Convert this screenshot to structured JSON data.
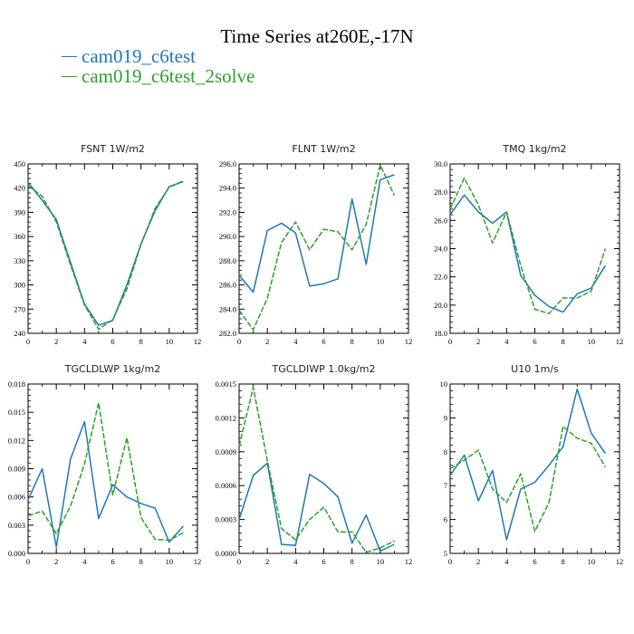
{
  "title": "Time Series at260E,-17N",
  "colors": {
    "series1": "#1f77b4",
    "series2": "#2ca02c"
  },
  "chart_data": [
    {
      "type": "line",
      "title": "FSNT   1W/m2",
      "ylim": [
        240,
        450
      ],
      "yticks": [
        "240",
        "270",
        "300",
        "330",
        "360",
        "390",
        "420",
        "450"
      ],
      "xlim": [
        0,
        12
      ],
      "xticks": [
        "0",
        "2",
        "4",
        "6",
        "8",
        "10",
        "12"
      ],
      "x": [
        0,
        1,
        2,
        3,
        4,
        5,
        6,
        7,
        8,
        9,
        10,
        11
      ],
      "series": [
        {
          "name": "cam019_c6test",
          "values": [
            427,
            405,
            381,
            328,
            276,
            250,
            256,
            300,
            351,
            392,
            422,
            428
          ]
        },
        {
          "name": "cam019_c6test_2solve",
          "values": [
            423,
            410,
            378,
            325,
            275,
            245,
            257,
            295,
            350,
            395,
            421,
            429
          ]
        }
      ]
    },
    {
      "type": "line",
      "title": "FLNT   1W/m2",
      "ylim": [
        282,
        296
      ],
      "yticks": [
        "282.0",
        "284.0",
        "286.0",
        "288.0",
        "290.0",
        "292.0",
        "294.0",
        "296.0"
      ],
      "xlim": [
        0,
        12
      ],
      "xticks": [
        "0",
        "2",
        "4",
        "6",
        "8",
        "10",
        "12"
      ],
      "x": [
        0,
        1,
        2,
        3,
        4,
        5,
        6,
        7,
        8,
        9,
        10,
        11
      ],
      "series": [
        {
          "name": "cam019_c6test",
          "values": [
            286.8,
            285.4,
            290.5,
            291.1,
            290.3,
            285.9,
            286.1,
            286.5,
            293.1,
            287.7,
            294.7,
            295.1
          ]
        },
        {
          "name": "cam019_c6test_2solve",
          "values": [
            283.9,
            282.3,
            284.9,
            289.5,
            291.2,
            288.9,
            290.6,
            290.4,
            288.9,
            291.0,
            295.9,
            293.4
          ]
        }
      ]
    },
    {
      "type": "line",
      "title": "TMQ   1kg/m2",
      "ylim": [
        18,
        30
      ],
      "yticks": [
        "18.0",
        "20.0",
        "22.0",
        "24.0",
        "26.0",
        "28.0",
        "30.0"
      ],
      "xlim": [
        0,
        12
      ],
      "xticks": [
        "0",
        "2",
        "4",
        "6",
        "8",
        "10",
        "12"
      ],
      "x": [
        0,
        1,
        2,
        3,
        4,
        5,
        6,
        7,
        8,
        9,
        10,
        11
      ],
      "series": [
        {
          "name": "cam019_c6test",
          "values": [
            26.4,
            27.8,
            26.6,
            25.8,
            26.6,
            22.1,
            20.7,
            19.9,
            19.5,
            20.8,
            21.2,
            22.8
          ]
        },
        {
          "name": "cam019_c6test_2solve",
          "values": [
            26.8,
            29.0,
            27.1,
            24.4,
            26.6,
            22.8,
            19.7,
            19.4,
            20.5,
            20.5,
            21.0,
            24.0
          ]
        }
      ]
    },
    {
      "type": "line",
      "title": "TGCLDLWP   1kg/m2",
      "ylim": [
        0,
        0.018
      ],
      "yticks": [
        "0.000",
        "0.003",
        "0.006",
        "0.009",
        "0.012",
        "0.015",
        "0.018"
      ],
      "xlim": [
        0,
        12
      ],
      "xticks": [
        "0",
        "2",
        "4",
        "6",
        "8",
        "10",
        "12"
      ],
      "x": [
        0,
        1,
        2,
        3,
        4,
        5,
        6,
        7,
        8,
        9,
        10,
        11
      ],
      "series": [
        {
          "name": "cam019_c6test",
          "values": [
            0.0057,
            0.009,
            0.0007,
            0.01,
            0.014,
            0.0037,
            0.0073,
            0.006,
            0.0053,
            0.0048,
            0.0012,
            0.0029
          ]
        },
        {
          "name": "cam019_c6test_2solve",
          "values": [
            0.004,
            0.0045,
            0.0021,
            0.005,
            0.0095,
            0.016,
            0.0062,
            0.0123,
            0.0038,
            0.0015,
            0.0014,
            0.0022
          ]
        }
      ]
    },
    {
      "type": "line",
      "title": "TGCLDIWP   1.0kg/m2",
      "ylim": [
        0,
        0.0015
      ],
      "yticks": [
        "0.0000",
        "0.0003",
        "0.0006",
        "0.0009",
        "0.0012",
        "0.0015"
      ],
      "xlim": [
        0,
        12
      ],
      "xticks": [
        "0",
        "2",
        "4",
        "6",
        "8",
        "10",
        "12"
      ],
      "x": [
        0,
        1,
        2,
        3,
        4,
        5,
        6,
        7,
        8,
        9,
        10,
        11
      ],
      "series": [
        {
          "name": "cam019_c6test",
          "values": [
            0.0003,
            0.00069,
            0.0008,
            8e-05,
            7e-05,
            0.0007,
            0.00062,
            0.0005,
            9e-05,
            0.00034,
            2e-05,
            8e-05
          ]
        },
        {
          "name": "cam019_c6test_2solve",
          "values": [
            0.00095,
            0.00147,
            0.00082,
            0.00022,
            0.00012,
            0.0003,
            0.00041,
            0.00019,
            0.00019,
            1e-05,
            5e-05,
            0.00011
          ]
        }
      ]
    },
    {
      "type": "line",
      "title": "U10   1m/s",
      "ylim": [
        5,
        10
      ],
      "yticks": [
        "5",
        "6",
        "7",
        "8",
        "9",
        "10"
      ],
      "xlim": [
        0,
        12
      ],
      "xticks": [
        "0",
        "2",
        "4",
        "6",
        "8",
        "10",
        "12"
      ],
      "x": [
        0,
        1,
        2,
        3,
        4,
        5,
        6,
        7,
        8,
        9,
        10,
        11
      ],
      "series": [
        {
          "name": "cam019_c6test",
          "values": [
            7.3,
            7.9,
            6.55,
            7.45,
            5.4,
            6.9,
            7.1,
            7.6,
            8.15,
            9.85,
            8.55,
            7.95
          ]
        },
        {
          "name": "cam019_c6test_2solve",
          "values": [
            7.5,
            7.75,
            8.05,
            6.9,
            6.5,
            7.35,
            5.65,
            6.5,
            8.75,
            8.4,
            8.25,
            7.55
          ]
        }
      ]
    }
  ]
}
